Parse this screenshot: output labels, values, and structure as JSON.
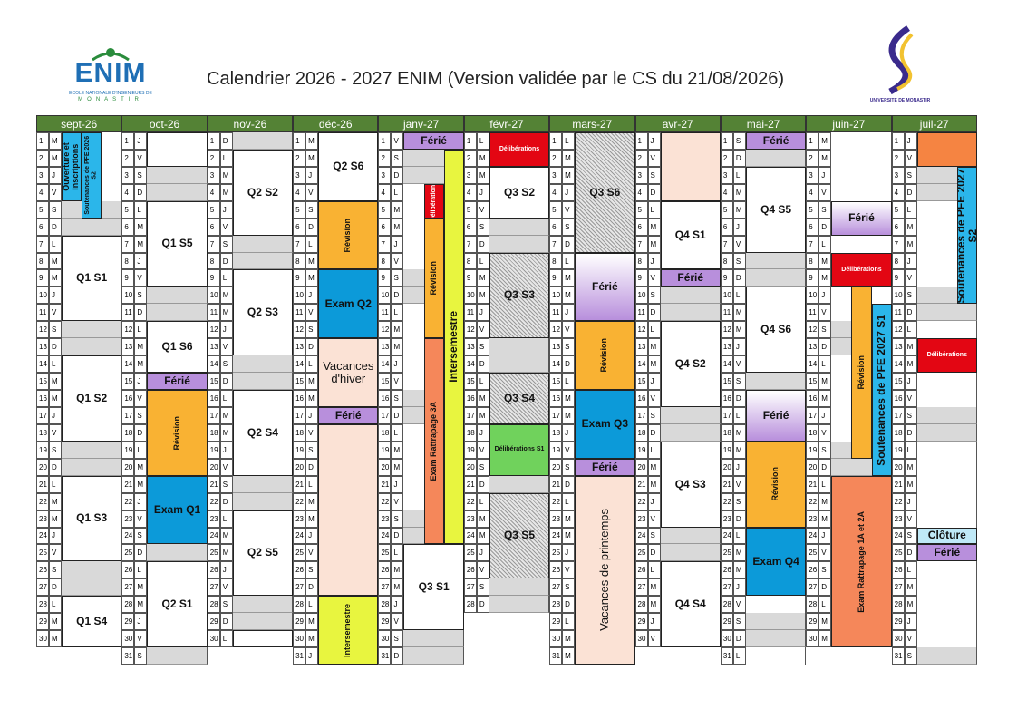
{
  "header": {
    "logo": "ENIM",
    "logo_sub": "ECOLE NATIONALE D'INGENIEURS DE",
    "logo_city": "MONASTIR",
    "title": "Calendrier 2026 - 2027 ENIM (Version validée par le CS du 21/08/2026)",
    "university": "UNIVERSITE DE MONASTIR"
  },
  "months": [
    {
      "name": "sept-26",
      "days": [
        1,
        2,
        3,
        4,
        5,
        6,
        7,
        8,
        9,
        10,
        11,
        12,
        13,
        14,
        15,
        16,
        17,
        18,
        19,
        20,
        21,
        22,
        23,
        24,
        25,
        26,
        27,
        28,
        29,
        30
      ],
      "weekdays": [
        "M",
        "M",
        "J",
        "V",
        "S",
        "D",
        "L",
        "M",
        "M",
        "J",
        "V",
        "S",
        "D",
        "L",
        "M",
        "M",
        "J",
        "V",
        "S",
        "D",
        "L",
        "M",
        "M",
        "J",
        "V",
        "S",
        "D",
        "L",
        "M",
        "M"
      ]
    },
    {
      "name": "oct-26",
      "days": [
        1,
        2,
        3,
        4,
        5,
        6,
        7,
        8,
        9,
        10,
        11,
        12,
        13,
        14,
        15,
        16,
        17,
        18,
        19,
        20,
        21,
        22,
        23,
        24,
        25,
        26,
        27,
        28,
        29,
        30,
        31
      ],
      "weekdays": [
        "J",
        "V",
        "S",
        "D",
        "L",
        "M",
        "M",
        "J",
        "V",
        "S",
        "D",
        "L",
        "M",
        "M",
        "J",
        "V",
        "S",
        "D",
        "L",
        "M",
        "M",
        "J",
        "V",
        "S",
        "D",
        "L",
        "M",
        "M",
        "J",
        "V",
        "S"
      ]
    },
    {
      "name": "nov-26",
      "days": [
        1,
        2,
        3,
        4,
        5,
        6,
        7,
        8,
        9,
        10,
        11,
        12,
        13,
        14,
        15,
        16,
        17,
        18,
        19,
        20,
        21,
        22,
        23,
        24,
        25,
        26,
        27,
        28,
        29,
        30
      ],
      "weekdays": [
        "D",
        "L",
        "M",
        "M",
        "J",
        "V",
        "S",
        "D",
        "L",
        "M",
        "M",
        "J",
        "V",
        "S",
        "D",
        "L",
        "M",
        "M",
        "J",
        "V",
        "S",
        "D",
        "L",
        "M",
        "M",
        "J",
        "V",
        "S",
        "D",
        "L"
      ]
    },
    {
      "name": "déc-26",
      "days": [
        1,
        2,
        3,
        4,
        5,
        6,
        7,
        8,
        9,
        10,
        11,
        12,
        13,
        14,
        15,
        16,
        17,
        18,
        19,
        20,
        21,
        22,
        23,
        24,
        25,
        26,
        27,
        28,
        29,
        30,
        31
      ],
      "weekdays": [
        "M",
        "M",
        "J",
        "V",
        "S",
        "D",
        "L",
        "M",
        "M",
        "J",
        "V",
        "S",
        "D",
        "L",
        "M",
        "M",
        "J",
        "V",
        "S",
        "D",
        "L",
        "M",
        "M",
        "J",
        "V",
        "S",
        "D",
        "L",
        "M",
        "M",
        "J"
      ]
    },
    {
      "name": "janv-27",
      "days": [
        1,
        2,
        3,
        4,
        5,
        6,
        7,
        8,
        9,
        10,
        11,
        12,
        13,
        14,
        15,
        16,
        17,
        18,
        19,
        20,
        21,
        22,
        23,
        24,
        25,
        26,
        27,
        28,
        29,
        30,
        31
      ],
      "weekdays": [
        "V",
        "S",
        "D",
        "L",
        "M",
        "M",
        "J",
        "V",
        "S",
        "D",
        "L",
        "M",
        "M",
        "J",
        "V",
        "S",
        "D",
        "L",
        "M",
        "M",
        "J",
        "V",
        "S",
        "D",
        "L",
        "M",
        "M",
        "J",
        "V",
        "S",
        "D"
      ]
    },
    {
      "name": "févr-27",
      "days": [
        1,
        2,
        3,
        4,
        5,
        6,
        7,
        8,
        9,
        10,
        11,
        12,
        13,
        14,
        15,
        16,
        17,
        18,
        19,
        20,
        21,
        22,
        23,
        24,
        25,
        26,
        27,
        28
      ],
      "weekdays": [
        "L",
        "M",
        "M",
        "J",
        "V",
        "S",
        "D",
        "L",
        "M",
        "M",
        "J",
        "V",
        "S",
        "D",
        "L",
        "M",
        "M",
        "J",
        "V",
        "S",
        "D",
        "L",
        "M",
        "M",
        "J",
        "V",
        "S",
        "D"
      ]
    },
    {
      "name": "mars-27",
      "days": [
        1,
        2,
        3,
        4,
        5,
        6,
        7,
        8,
        9,
        10,
        11,
        12,
        13,
        14,
        15,
        16,
        17,
        18,
        19,
        20,
        21,
        22,
        23,
        24,
        25,
        26,
        27,
        28,
        29,
        30,
        31
      ],
      "weekdays": [
        "L",
        "M",
        "M",
        "J",
        "V",
        "S",
        "D",
        "L",
        "M",
        "M",
        "J",
        "V",
        "S",
        "D",
        "L",
        "M",
        "M",
        "J",
        "V",
        "S",
        "D",
        "L",
        "M",
        "M",
        "J",
        "V",
        "S",
        "D",
        "L",
        "M",
        "M"
      ]
    },
    {
      "name": "avr-27",
      "days": [
        1,
        2,
        3,
        4,
        5,
        6,
        7,
        8,
        9,
        10,
        11,
        12,
        13,
        14,
        15,
        16,
        17,
        18,
        19,
        20,
        21,
        22,
        23,
        24,
        25,
        26,
        27,
        28,
        29,
        30
      ],
      "weekdays": [
        "J",
        "V",
        "S",
        "D",
        "L",
        "M",
        "M",
        "J",
        "V",
        "S",
        "D",
        "L",
        "M",
        "M",
        "J",
        "V",
        "S",
        "D",
        "L",
        "M",
        "M",
        "J",
        "V",
        "S",
        "D",
        "L",
        "M",
        "M",
        "J",
        "V"
      ]
    },
    {
      "name": "mai-27",
      "days": [
        1,
        2,
        3,
        4,
        5,
        6,
        7,
        8,
        9,
        10,
        11,
        12,
        13,
        14,
        15,
        16,
        17,
        18,
        19,
        20,
        21,
        22,
        23,
        24,
        25,
        26,
        27,
        28,
        29,
        30,
        31
      ],
      "weekdays": [
        "S",
        "D",
        "L",
        "M",
        "M",
        "J",
        "V",
        "S",
        "D",
        "L",
        "M",
        "M",
        "J",
        "V",
        "S",
        "D",
        "L",
        "M",
        "M",
        "J",
        "V",
        "S",
        "D",
        "L",
        "M",
        "M",
        "J",
        "V",
        "S",
        "D",
        "L"
      ]
    },
    {
      "name": "juin-27",
      "days": [
        1,
        2,
        3,
        4,
        5,
        6,
        7,
        8,
        9,
        10,
        11,
        12,
        13,
        14,
        15,
        16,
        17,
        18,
        19,
        20,
        21,
        22,
        23,
        24,
        25,
        26,
        27,
        28,
        29,
        30
      ],
      "weekdays": [
        "M",
        "M",
        "J",
        "V",
        "S",
        "D",
        "L",
        "M",
        "M",
        "J",
        "V",
        "S",
        "D",
        "L",
        "M",
        "M",
        "J",
        "V",
        "S",
        "D",
        "L",
        "M",
        "M",
        "J",
        "V",
        "S",
        "D",
        "L",
        "M",
        "M"
      ]
    },
    {
      "name": "juil-27",
      "days": [
        1,
        2,
        3,
        4,
        5,
        6,
        7,
        8,
        9,
        10,
        11,
        12,
        13,
        14,
        15,
        16,
        17,
        18,
        19,
        20,
        21,
        22,
        23,
        24,
        25,
        26,
        27,
        28,
        29,
        30,
        31
      ],
      "weekdays": [
        "J",
        "V",
        "S",
        "D",
        "L",
        "M",
        "M",
        "J",
        "V",
        "S",
        "D",
        "L",
        "M",
        "M",
        "J",
        "V",
        "S",
        "D",
        "L",
        "M",
        "M",
        "J",
        "V",
        "S",
        "D",
        "L",
        "M",
        "M",
        "J",
        "V",
        "S"
      ]
    }
  ],
  "events": [
    {
      "month": 0,
      "from": 1,
      "to": 4,
      "label": "Ouverture et Inscriptions",
      "color": "#2bb6ea",
      "lane": 0,
      "lanes": 3,
      "vertical": true,
      "size": "small"
    },
    {
      "month": 0,
      "from": 1,
      "to": 5,
      "label": "Soutenances de PFE 2026 S2",
      "color": "#2bb6ea",
      "lane": 1,
      "lanes": 3,
      "vertical": true,
      "size": "tiny"
    },
    {
      "month": 0,
      "from": 7,
      "to": 11,
      "label": "Q1 S1",
      "color": "#ffffff"
    },
    {
      "month": 0,
      "from": 14,
      "to": 18,
      "label": "Q1 S2",
      "color": "#ffffff"
    },
    {
      "month": 0,
      "from": 21,
      "to": 25,
      "label": "Q1 S3",
      "color": "#ffffff"
    },
    {
      "month": 0,
      "from": 28,
      "to": 30,
      "label": "Q1 S4",
      "color": "#ffffff"
    },
    {
      "month": 1,
      "from": 1,
      "to": 2,
      "color": "#ffffff"
    },
    {
      "month": 1,
      "from": 5,
      "to": 9,
      "label": "Q1 S5",
      "color": "#ffffff"
    },
    {
      "month": 1,
      "from": 12,
      "to": 14,
      "label": "Q1 S6",
      "color": "#ffffff"
    },
    {
      "month": 1,
      "from": 15,
      "to": 15,
      "label": "Férié",
      "color": "#b88fdc"
    },
    {
      "month": 1,
      "from": 16,
      "to": 20,
      "label": "Révision",
      "color": "#f9b233",
      "vertical": true,
      "size": "small"
    },
    {
      "month": 1,
      "from": 21,
      "to": 24,
      "label": "Exam Q1",
      "color": "#0c9ad9"
    },
    {
      "month": 1,
      "from": 26,
      "to": 30,
      "label": "Q2 S1",
      "color": "#ffffff"
    },
    {
      "month": 2,
      "from": 2,
      "to": 6,
      "label": "Q2 S2",
      "color": "#ffffff"
    },
    {
      "month": 2,
      "from": 9,
      "to": 13,
      "label": "Q2 S3",
      "color": "#ffffff"
    },
    {
      "month": 2,
      "from": 16,
      "to": 20,
      "label": "Q2 S4",
      "color": "#ffffff"
    },
    {
      "month": 2,
      "from": 23,
      "to": 27,
      "label": "Q2 S5",
      "color": "#ffffff"
    },
    {
      "month": 2,
      "from": 30,
      "to": 30,
      "color": "#ffffff"
    },
    {
      "month": 3,
      "from": 1,
      "to": 4,
      "label": "Q2 S6",
      "color": "#ffffff"
    },
    {
      "month": 3,
      "from": 5,
      "to": 8,
      "label": "Révision",
      "color": "#f9b233",
      "vertical": true,
      "size": "small"
    },
    {
      "month": 3,
      "from": 9,
      "to": 12,
      "label": "Exam Q2",
      "color": "#0c9ad9"
    },
    {
      "month": 3,
      "from": 13,
      "to": 16,
      "label": "Vacances d'hiver",
      "color": "#fbe2d5",
      "size": "big"
    },
    {
      "month": 3,
      "from": 17,
      "to": 17,
      "label": "Férié",
      "color": "#b88fdc"
    },
    {
      "month": 3,
      "from": 18,
      "to": 27,
      "color": "#fbe2d5"
    },
    {
      "month": 3,
      "from": 28,
      "to": 31,
      "label": "Intersemestre",
      "color": "#e8f53f",
      "vertical": true,
      "size": "small"
    },
    {
      "month": 4,
      "from": 1,
      "to": 1,
      "label": "Férié",
      "color": "#b88fdc"
    },
    {
      "month": 4,
      "from": 2,
      "to": 24,
      "label": "Intersemestre",
      "color": "#e8f53f",
      "lane": 2,
      "lanes": 3,
      "vertical": true
    },
    {
      "month": 4,
      "from": 4,
      "to": 5,
      "label": "Délibérations",
      "color": "#e30613",
      "lane": 1,
      "lanes": 3,
      "vertical": true,
      "size": "tiny"
    },
    {
      "month": 4,
      "from": 6,
      "to": 12,
      "label": "Révision",
      "color": "#f9b233",
      "lane": 1,
      "lanes": 3,
      "vertical": true,
      "size": "small"
    },
    {
      "month": 4,
      "from": 13,
      "to": 24,
      "label": "Exam Rattrapage 3A",
      "color": "#f5875a",
      "lane": 1,
      "lanes": 3,
      "vertical": true,
      "size": "small"
    },
    {
      "month": 4,
      "from": 25,
      "to": 29,
      "label": "Q3 S1",
      "color": "#ffffff"
    },
    {
      "month": 5,
      "from": 1,
      "to": 2,
      "label": "Délibérations",
      "color": "#e30613",
      "size": "tiny"
    },
    {
      "month": 5,
      "from": 3,
      "to": 5,
      "label": "Q3 S2",
      "color": "#ffffff"
    },
    {
      "month": 5,
      "from": 8,
      "to": 12,
      "label": "Q3 S3",
      "color": "#cccccc",
      "pattern": "hatch"
    },
    {
      "month": 5,
      "from": 15,
      "to": 17,
      "label": "Q3 S4",
      "color": "#cccccc",
      "pattern": "hatch"
    },
    {
      "month": 5,
      "from": 18,
      "to": 20,
      "label": "Délibérations S1",
      "color": "#70d25c",
      "size": "tiny"
    },
    {
      "month": 5,
      "from": 22,
      "to": 26,
      "label": "Q3 S5",
      "color": "#cccccc",
      "pattern": "hatch"
    },
    {
      "month": 6,
      "from": 1,
      "to": 7,
      "label": "Q3 S6",
      "color": "#cccccc",
      "pattern": "hatch"
    },
    {
      "month": 6,
      "from": 8,
      "to": 11,
      "label": "Férié",
      "color": "#b88fdc",
      "pattern": "fade"
    },
    {
      "month": 6,
      "from": 12,
      "to": 15,
      "label": "Révision",
      "color": "#f9b233",
      "vertical": true,
      "size": "small"
    },
    {
      "month": 6,
      "from": 16,
      "to": 19,
      "label": "Exam Q3",
      "color": "#0c9ad9"
    },
    {
      "month": 6,
      "from": 20,
      "to": 20,
      "label": "Férié",
      "color": "#b88fdc"
    },
    {
      "month": 6,
      "from": 21,
      "to": 31,
      "label": "Vacances de printemps",
      "color": "#fbe2d5",
      "vertical": true,
      "size": "big"
    },
    {
      "month": 7,
      "from": 1,
      "to": 4,
      "color": "#fbe2d5"
    },
    {
      "month": 7,
      "from": 5,
      "to": 8,
      "label": "Q4 S1",
      "color": "#ffffff"
    },
    {
      "month": 7,
      "from": 9,
      "to": 9,
      "label": "Férié",
      "color": "#b88fdc"
    },
    {
      "month": 7,
      "from": 12,
      "to": 16,
      "label": "Q4 S2",
      "color": "#ffffff"
    },
    {
      "month": 7,
      "from": 19,
      "to": 23,
      "label": "Q4 S3",
      "color": "#ffffff"
    },
    {
      "month": 7,
      "from": 26,
      "to": 30,
      "label": "Q4 S4",
      "color": "#ffffff"
    },
    {
      "month": 8,
      "from": 1,
      "to": 1,
      "label": "Férié",
      "color": "#b88fdc"
    },
    {
      "month": 8,
      "from": 3,
      "to": 7,
      "label": "Q4 S5",
      "color": "#ffffff"
    },
    {
      "month": 8,
      "from": 10,
      "to": 14,
      "label": "Q4 S6",
      "color": "#ffffff"
    },
    {
      "month": 8,
      "from": 16,
      "to": 18,
      "label": "Férié",
      "color": "#b88fdc",
      "pattern": "fade"
    },
    {
      "month": 8,
      "from": 19,
      "to": 23,
      "label": "Révision",
      "color": "#f9b233",
      "vertical": true,
      "size": "small"
    },
    {
      "month": 8,
      "from": 24,
      "to": 27,
      "label": "Exam Q4",
      "color": "#0c9ad9"
    },
    {
      "month": 9,
      "from": 5,
      "to": 6,
      "label": "Férié",
      "color": "#b88fdc",
      "pattern": "fade"
    },
    {
      "month": 9,
      "from": 8,
      "to": 9,
      "label": "Délibérations",
      "color": "#e30613",
      "size": "tiny"
    },
    {
      "month": 9,
      "from": 10,
      "to": 19,
      "label": "Révision",
      "color": "#f9b233",
      "lane": 1,
      "lanes": 3,
      "vertical": true,
      "size": "small"
    },
    {
      "month": 9,
      "from": 11,
      "to": 20,
      "label": "Soutenances de PFE 2027 S1",
      "color": "#2bb6ea",
      "lane": 2,
      "lanes": 3,
      "vertical": true
    },
    {
      "month": 9,
      "from": 21,
      "to": 30,
      "label": "Exam Rattrapage 1A et 2A",
      "color": "#f5875a",
      "vertical": true,
      "size": "small"
    },
    {
      "month": 10,
      "from": 1,
      "to": 2,
      "color": "#f58442"
    },
    {
      "month": 10,
      "from": 3,
      "to": 10,
      "label": "Soutenances de PFE 2027 S2",
      "color": "#2bb6ea",
      "lane": 2,
      "lanes": 3,
      "vertical": true
    },
    {
      "month": 10,
      "from": 13,
      "to": 14,
      "label": "Délibérations",
      "color": "#e30613",
      "size": "tiny"
    },
    {
      "month": 10,
      "from": 24,
      "to": 24,
      "label": "Clôture",
      "color": "#bfe9f7"
    },
    {
      "month": 10,
      "from": 25,
      "to": 25,
      "label": "Férié",
      "color": "#b88fdc"
    }
  ]
}
